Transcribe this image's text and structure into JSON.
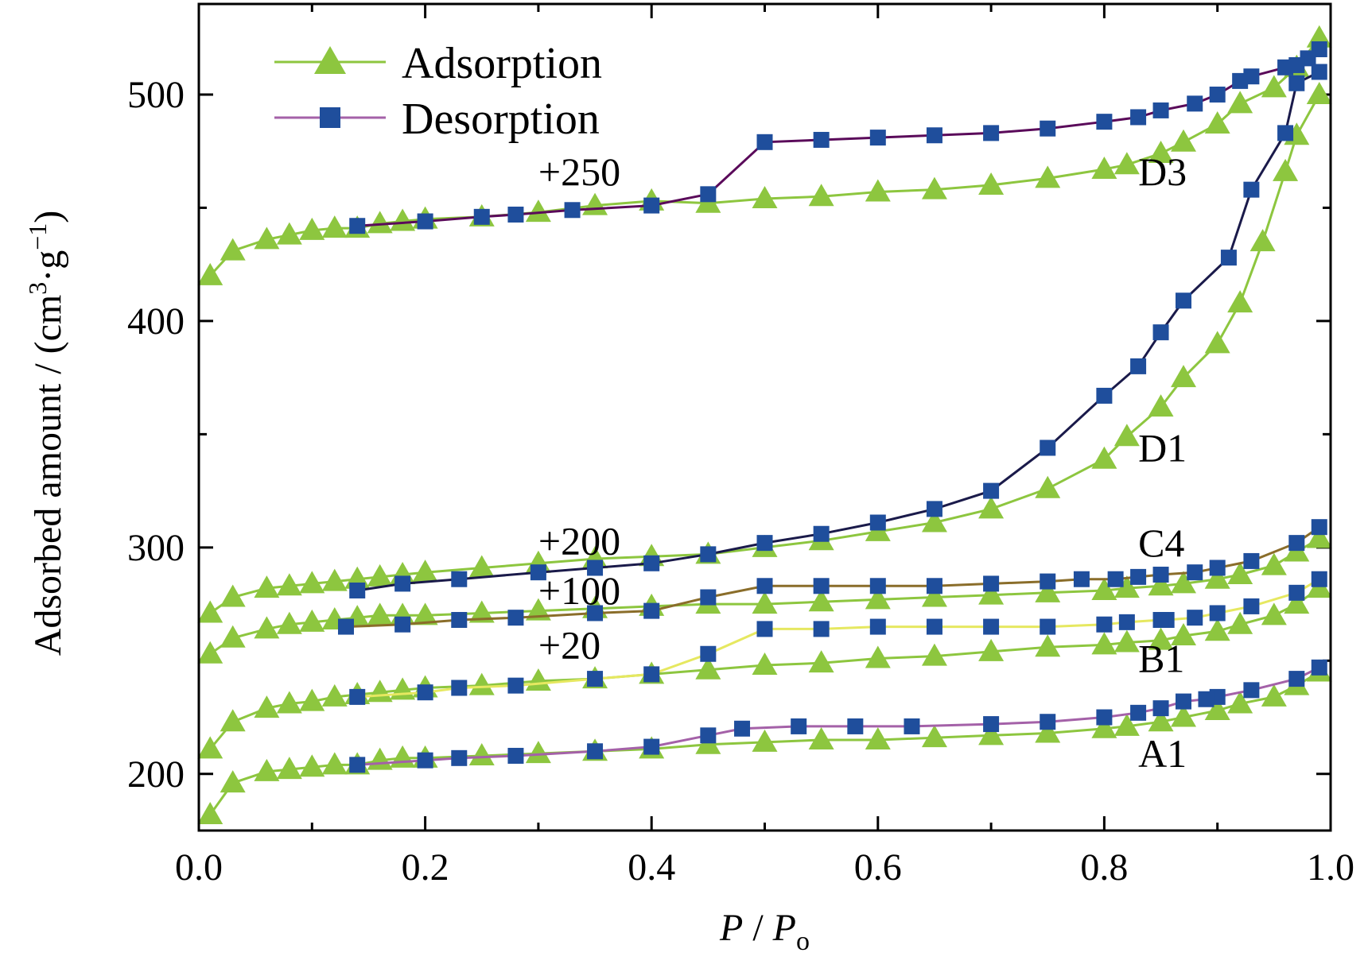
{
  "chart_data": {
    "type": "line",
    "xlabel_main": "P",
    "xlabel_sep": " / ",
    "xlabel_den": "P",
    "xlabel_sub": "o",
    "ylabel_main": "Adsorbed amount / (cm",
    "ylabel_sup1": "3",
    "ylabel_mid": "·g",
    "ylabel_sup2": "−1",
    "ylabel_end": ")",
    "xlim": [
      0.0,
      1.0
    ],
    "ylim": [
      175,
      540
    ],
    "x_ticks": [
      0.0,
      0.2,
      0.4,
      0.6,
      0.8,
      1.0
    ],
    "x_tick_labels": [
      "0.0",
      "0.2",
      "0.4",
      "0.6",
      "0.8",
      "1.0"
    ],
    "y_ticks": [
      200,
      300,
      400,
      500
    ],
    "y_tick_labels": [
      "200",
      "300",
      "400",
      "500"
    ],
    "legend": {
      "position": "top-left",
      "entries": [
        {
          "label": "Adsorption",
          "marker": "triangle",
          "line_color": "#8dc63f",
          "marker_color": "#8dc63f"
        },
        {
          "label": "Desorption",
          "marker": "square",
          "line_color": "#a461a8",
          "marker_color": "#1f4e9c"
        }
      ]
    },
    "colors": {
      "adsorption_marker": "#8dc63f",
      "desorption_marker": "#1f4e9c"
    },
    "annotations": [
      {
        "text": "+250",
        "x": 0.3,
        "y": 460
      },
      {
        "text": "+200",
        "x": 0.3,
        "y": 297
      },
      {
        "text": "+100",
        "x": 0.3,
        "y": 275
      },
      {
        "text": "+20",
        "x": 0.3,
        "y": 251
      },
      {
        "text": "D3",
        "x": 0.83,
        "y": 460
      },
      {
        "text": "D1",
        "x": 0.83,
        "y": 338
      },
      {
        "text": "C4",
        "x": 0.83,
        "y": 296
      },
      {
        "text": "B1",
        "x": 0.83,
        "y": 245
      },
      {
        "text": "A1",
        "x": 0.83,
        "y": 203
      }
    ],
    "series": [
      {
        "sample": "D3",
        "kind": "adsorption",
        "line_color": "#8dc63f",
        "x": [
          0.01,
          0.03,
          0.06,
          0.08,
          0.1,
          0.12,
          0.14,
          0.16,
          0.18,
          0.2,
          0.25,
          0.3,
          0.35,
          0.4,
          0.45,
          0.5,
          0.55,
          0.6,
          0.65,
          0.7,
          0.75,
          0.8,
          0.82,
          0.85,
          0.87,
          0.9,
          0.92,
          0.95,
          0.97,
          0.99
        ],
        "y": [
          420,
          431,
          436,
          438,
          440,
          441,
          441,
          443,
          444,
          445,
          446,
          448,
          451,
          453,
          452,
          454,
          455,
          457,
          458,
          460,
          463,
          467,
          469,
          474,
          479,
          487,
          496,
          503,
          512,
          525
        ]
      },
      {
        "sample": "D3",
        "kind": "desorption",
        "line_color": "#5a0a5a",
        "x": [
          0.99,
          0.98,
          0.97,
          0.96,
          0.93,
          0.92,
          0.9,
          0.88,
          0.85,
          0.83,
          0.8,
          0.75,
          0.7,
          0.65,
          0.6,
          0.55,
          0.5,
          0.45,
          0.4,
          0.33,
          0.28,
          0.25,
          0.2,
          0.14
        ],
        "y": [
          520,
          516,
          513,
          512,
          508,
          506,
          500,
          496,
          493,
          490,
          488,
          485,
          483,
          482,
          481,
          480,
          479,
          456,
          451,
          449,
          447,
          446,
          444,
          442
        ]
      },
      {
        "sample": "D1",
        "kind": "adsorption",
        "line_color": "#8dc63f",
        "x": [
          0.01,
          0.03,
          0.06,
          0.08,
          0.1,
          0.12,
          0.14,
          0.16,
          0.18,
          0.2,
          0.25,
          0.3,
          0.35,
          0.4,
          0.45,
          0.5,
          0.55,
          0.6,
          0.65,
          0.7,
          0.75,
          0.8,
          0.82,
          0.85,
          0.87,
          0.9,
          0.92,
          0.94,
          0.96,
          0.97,
          0.99
        ],
        "y": [
          271,
          278,
          282,
          283,
          284,
          285,
          286,
          287,
          288,
          289,
          291,
          293,
          295,
          296,
          297,
          300,
          303,
          307,
          311,
          317,
          326,
          339,
          349,
          362,
          375,
          390,
          408,
          435,
          466,
          482,
          500
        ]
      },
      {
        "sample": "D1",
        "kind": "desorption",
        "line_color": "#1a1a4a",
        "x": [
          0.99,
          0.97,
          0.96,
          0.93,
          0.91,
          0.87,
          0.85,
          0.83,
          0.8,
          0.75,
          0.7,
          0.65,
          0.6,
          0.55,
          0.5,
          0.45,
          0.4,
          0.35,
          0.3,
          0.23,
          0.18,
          0.14
        ],
        "y": [
          510,
          505,
          483,
          458,
          428,
          409,
          395,
          380,
          367,
          344,
          325,
          317,
          311,
          306,
          302,
          297,
          293,
          291,
          289,
          286,
          284,
          281
        ]
      },
      {
        "sample": "C4",
        "kind": "adsorption",
        "line_color": "#8dc63f",
        "x": [
          0.01,
          0.03,
          0.06,
          0.08,
          0.1,
          0.12,
          0.14,
          0.16,
          0.18,
          0.2,
          0.25,
          0.3,
          0.35,
          0.4,
          0.45,
          0.5,
          0.55,
          0.6,
          0.65,
          0.7,
          0.75,
          0.8,
          0.82,
          0.85,
          0.87,
          0.9,
          0.92,
          0.95,
          0.97,
          0.99
        ],
        "y": [
          253,
          260,
          264,
          266,
          267,
          268,
          269,
          270,
          270,
          270,
          271,
          272,
          273,
          274,
          275,
          275,
          276,
          277,
          278,
          279,
          280,
          281,
          282,
          283,
          284,
          286,
          288,
          292,
          298,
          304
        ]
      },
      {
        "sample": "C4",
        "kind": "desorption",
        "line_color": "#8a6d2a",
        "x": [
          0.99,
          0.97,
          0.93,
          0.9,
          0.88,
          0.85,
          0.83,
          0.81,
          0.78,
          0.75,
          0.7,
          0.65,
          0.6,
          0.55,
          0.5,
          0.45,
          0.4,
          0.35,
          0.28,
          0.23,
          0.18,
          0.13
        ],
        "y": [
          309,
          302,
          294,
          291,
          289,
          288,
          287,
          286,
          286,
          285,
          284,
          283,
          283,
          283,
          283,
          278,
          272,
          271,
          269,
          268,
          266,
          265
        ]
      },
      {
        "sample": "B1",
        "kind": "adsorption",
        "line_color": "#8dc63f",
        "x": [
          0.01,
          0.03,
          0.06,
          0.08,
          0.1,
          0.12,
          0.14,
          0.16,
          0.18,
          0.2,
          0.25,
          0.3,
          0.35,
          0.4,
          0.45,
          0.5,
          0.55,
          0.6,
          0.65,
          0.7,
          0.75,
          0.8,
          0.82,
          0.85,
          0.87,
          0.9,
          0.92,
          0.95,
          0.97,
          0.99
        ],
        "y": [
          211,
          223,
          229,
          231,
          232,
          234,
          235,
          236,
          237,
          238,
          239,
          241,
          242,
          244,
          246,
          248,
          249,
          251,
          252,
          254,
          256,
          257,
          258,
          259,
          261,
          263,
          266,
          270,
          275,
          282
        ]
      },
      {
        "sample": "B1",
        "kind": "desorption",
        "line_color": "#e6e860",
        "x": [
          0.99,
          0.97,
          0.93,
          0.9,
          0.88,
          0.855,
          0.85,
          0.82,
          0.8,
          0.75,
          0.7,
          0.65,
          0.6,
          0.55,
          0.5,
          0.45,
          0.4,
          0.35,
          0.28,
          0.23,
          0.2,
          0.14
        ],
        "y": [
          286,
          280,
          274,
          271,
          269,
          268,
          268,
          267,
          266,
          265,
          265,
          265,
          265,
          264,
          264,
          253,
          244,
          242,
          239,
          238,
          236,
          234
        ]
      },
      {
        "sample": "A1",
        "kind": "adsorption",
        "line_color": "#8dc63f",
        "x": [
          0.01,
          0.03,
          0.06,
          0.08,
          0.1,
          0.12,
          0.14,
          0.16,
          0.18,
          0.2,
          0.25,
          0.3,
          0.35,
          0.4,
          0.45,
          0.5,
          0.55,
          0.6,
          0.65,
          0.7,
          0.75,
          0.8,
          0.82,
          0.85,
          0.87,
          0.9,
          0.92,
          0.95,
          0.97,
          0.99
        ],
        "y": [
          182,
          196,
          201,
          202,
          203,
          204,
          204,
          206,
          207,
          207,
          208,
          209,
          210,
          211,
          213,
          214,
          215,
          215,
          216,
          217,
          218,
          220,
          221,
          223,
          225,
          228,
          231,
          234,
          239,
          245
        ]
      },
      {
        "sample": "A1",
        "kind": "desorption",
        "line_color": "#a461a8",
        "x": [
          0.99,
          0.97,
          0.93,
          0.9,
          0.89,
          0.87,
          0.85,
          0.83,
          0.8,
          0.75,
          0.7,
          0.63,
          0.58,
          0.53,
          0.48,
          0.45,
          0.4,
          0.35,
          0.28,
          0.23,
          0.2,
          0.14
        ],
        "y": [
          247,
          242,
          237,
          234,
          233,
          232,
          229,
          227,
          225,
          223,
          222,
          221,
          221,
          221,
          220,
          217,
          212,
          210,
          208,
          207,
          206,
          204
        ]
      }
    ]
  }
}
